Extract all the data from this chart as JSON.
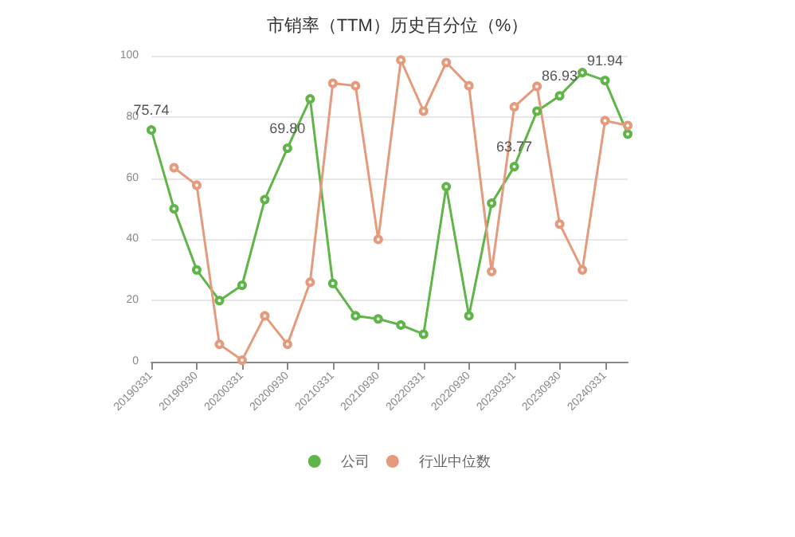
{
  "chart_data": {
    "type": "line",
    "title": "市销率（TTM）历史百分位（%）",
    "categories": [
      "20190331",
      null,
      "20190930",
      null,
      "20200331",
      null,
      "20200930",
      null,
      "20210331",
      null,
      "20210930",
      null,
      "20220331",
      null,
      "20220930",
      null,
      "20230331",
      null,
      "20230930",
      null,
      "20240331",
      null
    ],
    "series": [
      {
        "name": "公司",
        "color": "#5fb548",
        "values": [
          75.74,
          50,
          30,
          20,
          25,
          53,
          69.8,
          85.9,
          25.6,
          15,
          14,
          12,
          9,
          57.2,
          15,
          51.8,
          63.77,
          81.9,
          86.93,
          94.5,
          91.94,
          74.4
        ],
        "value_labels": [
          "75.74",
          null,
          null,
          null,
          null,
          null,
          "69.80",
          null,
          null,
          null,
          null,
          null,
          null,
          null,
          null,
          null,
          "63.77",
          null,
          "86.93",
          null,
          "91.94",
          null
        ]
      },
      {
        "name": "行业中位数",
        "color": "#e59a7c",
        "values": [
          null,
          63.4,
          57.7,
          5.7,
          0.5,
          15,
          5.7,
          26,
          91,
          90.2,
          40,
          98.6,
          81.9,
          97.8,
          90.2,
          29.5,
          83.3,
          90,
          45,
          30,
          78.8,
          77.2
        ]
      }
    ],
    "ylim": [
      0,
      100
    ],
    "yticks": [
      0,
      20,
      40,
      60,
      80,
      100
    ],
    "grid": "y",
    "legend": "bottom",
    "marker": "circle",
    "line_style": "solid"
  }
}
